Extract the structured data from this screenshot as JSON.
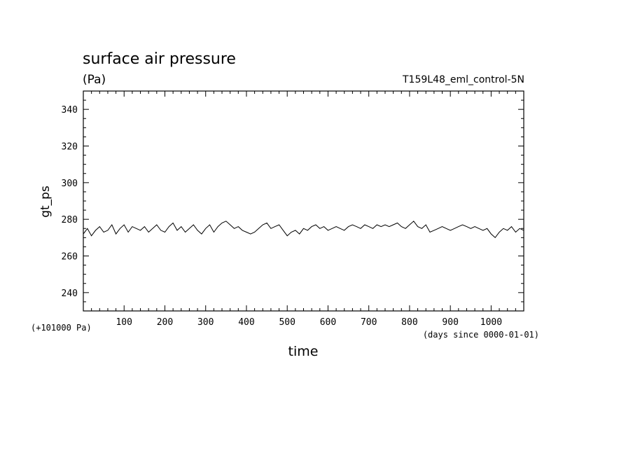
{
  "chart_data": {
    "type": "line",
    "title": "surface air pressure",
    "units": "(Pa)",
    "dataset": "T159L48_eml_control-5N",
    "ylabel": "gt_ps",
    "xlabel": "time",
    "x_unit_note": "(days since 0000-01-01)",
    "y_offset_note": "(+101000 Pa)",
    "xlim": [
      0,
      1080
    ],
    "ylim": [
      230,
      350
    ],
    "x_ticks": [
      100,
      200,
      300,
      400,
      500,
      600,
      700,
      800,
      900,
      1000
    ],
    "y_ticks": [
      240,
      260,
      280,
      300,
      320,
      340
    ],
    "x_tick_labels": [
      "100",
      "200",
      "300",
      "400",
      "500",
      "600",
      "700",
      "800",
      "900",
      "1000"
    ],
    "y_tick_labels": [
      "240",
      "260",
      "280",
      "300",
      "320",
      "340"
    ],
    "grid": false,
    "series": [
      {
        "x": [
          0,
          10,
          20,
          30,
          40,
          50,
          60,
          70,
          80,
          90,
          100,
          110,
          120,
          130,
          140,
          150,
          160,
          170,
          180,
          190,
          200,
          210,
          220,
          230,
          240,
          250,
          260,
          270,
          280,
          290,
          300,
          310,
          320,
          330,
          340,
          350,
          360,
          370,
          380,
          390,
          400,
          410,
          420,
          430,
          440,
          450,
          460,
          470,
          480,
          490,
          500,
          510,
          520,
          530,
          540,
          550,
          560,
          570,
          580,
          590,
          600,
          610,
          620,
          630,
          640,
          650,
          660,
          670,
          680,
          690,
          700,
          710,
          720,
          730,
          740,
          750,
          760,
          770,
          780,
          790,
          800,
          810,
          820,
          830,
          840,
          850,
          860,
          870,
          880,
          890,
          900,
          910,
          920,
          930,
          940,
          950,
          960,
          970,
          980,
          990,
          1000,
          1010,
          1020,
          1030,
          1040,
          1050,
          1060,
          1070,
          1080
        ],
        "y": [
          272,
          275,
          271,
          274,
          276,
          273,
          274,
          277,
          272,
          275,
          277,
          273,
          276,
          275,
          274,
          276,
          273,
          275,
          277,
          274,
          273,
          276,
          278,
          274,
          276,
          273,
          275,
          277,
          274,
          272,
          275,
          277,
          273,
          276,
          278,
          279,
          277,
          275,
          276,
          274,
          273,
          272,
          273,
          275,
          277,
          278,
          275,
          276,
          277,
          274,
          271,
          273,
          274,
          272,
          275,
          274,
          276,
          277,
          275,
          276,
          274,
          275,
          276,
          275,
          274,
          276,
          277,
          276,
          275,
          277,
          276,
          275,
          277,
          276,
          277,
          276,
          277,
          278,
          276,
          275,
          277,
          279,
          276,
          275,
          277,
          273,
          274,
          275,
          276,
          275,
          274,
          275,
          276,
          277,
          276,
          275,
          276,
          275,
          274,
          275,
          272,
          270,
          273,
          275,
          274,
          276,
          273,
          275,
          274
        ]
      }
    ]
  }
}
